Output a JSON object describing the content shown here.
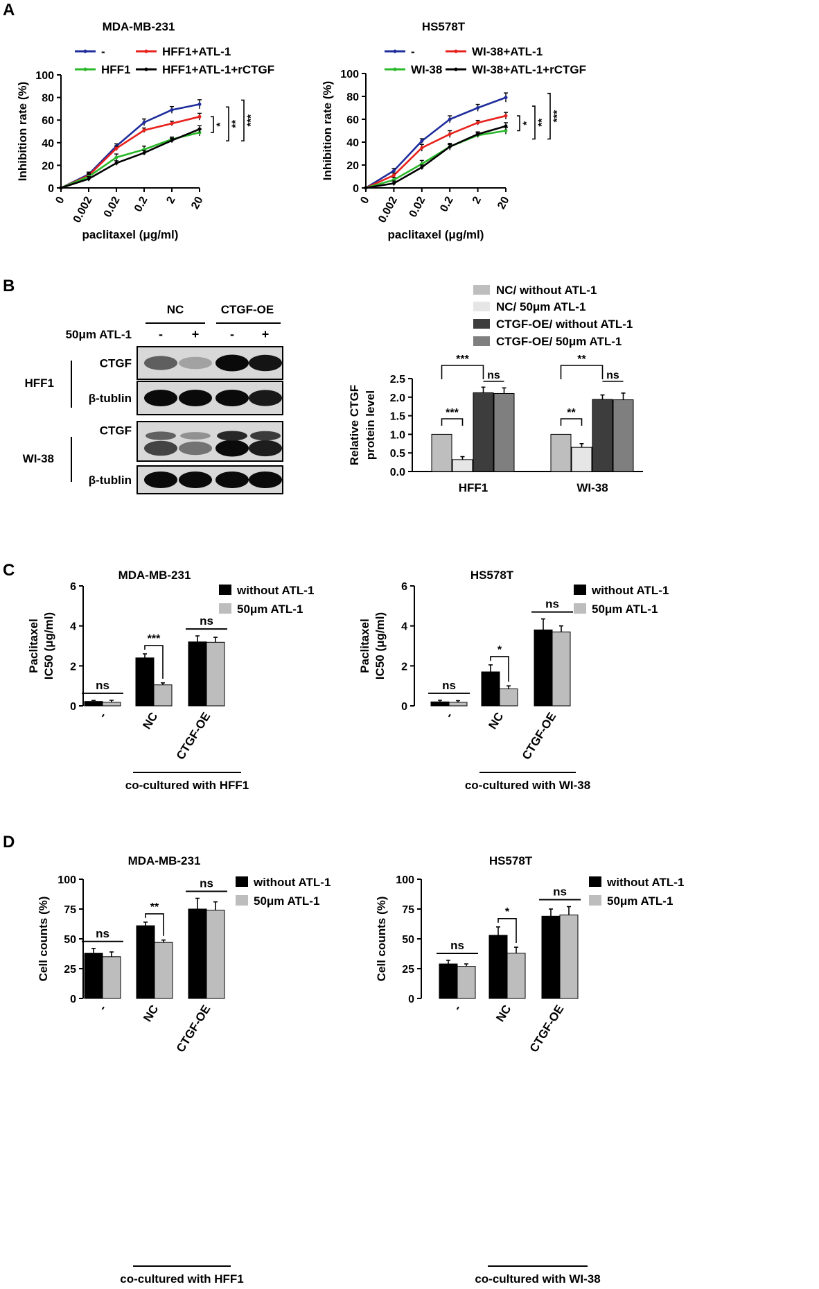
{
  "panel_labels": {
    "A": "A",
    "B": "B",
    "C": "C",
    "D": "D"
  },
  "blot": {
    "group_nc": "NC",
    "group_oe": "CTGF-OE",
    "treatment_label": "50μm ATL-1",
    "treatment_signs": [
      "-",
      "+",
      "-",
      "+"
    ],
    "rows": [
      {
        "cell": "HFF1",
        "protein": "CTGF",
        "intensities": [
          0.55,
          0.2,
          1.0,
          0.95
        ]
      },
      {
        "cell": "HFF1",
        "protein": "β-tublin",
        "intensities": [
          1.0,
          1.0,
          1.0,
          0.92
        ]
      },
      {
        "cell": "WI-38",
        "protein": "CTGF",
        "intensities": [
          0.7,
          0.45,
          1.0,
          0.9
        ]
      },
      {
        "cell": "WI-38",
        "protein": "β-tublin",
        "intensities": [
          1.0,
          1.0,
          1.0,
          1.0
        ]
      }
    ],
    "cell_labels": [
      "HFF1",
      "WI-38"
    ]
  },
  "colors": {
    "blue": "#1f2d9c",
    "red": "#e8211c",
    "green": "#2ab82a",
    "black": "#000000"
  },
  "chart_data": [
    {
      "type": "line",
      "panel": "A",
      "title": "MDA-MB-231",
      "xlabel": "paclitaxel (μg/ml)",
      "ylabel": "Inhibition rate (%)",
      "categories": [
        "0",
        "0.002",
        "0.02",
        "0.2",
        "2",
        "20"
      ],
      "ylim": [
        0,
        100
      ],
      "yticks": [
        "0",
        "20",
        "40",
        "60",
        "80",
        "100"
      ],
      "series": [
        {
          "name": "-",
          "color": "#1f2d9c",
          "values": [
            0,
            12,
            37,
            58,
            69,
            74
          ],
          "errors": [
            0,
            2,
            2,
            3,
            3,
            4
          ]
        },
        {
          "name": "HFF1+ATL-1",
          "color": "#e8211c",
          "values": [
            0,
            11,
            35,
            51,
            57,
            63
          ],
          "errors": [
            0,
            2,
            2,
            2,
            2,
            3
          ]
        },
        {
          "name": "HFF1",
          "color": "#2ab82a",
          "values": [
            0,
            10,
            27,
            34,
            43,
            49
          ],
          "errors": [
            0,
            2,
            3,
            3,
            2,
            3
          ]
        },
        {
          "name": "HFF1+ATL-1+rCTGF",
          "color": "#000000",
          "values": [
            0,
            8,
            22,
            31,
            42,
            52
          ],
          "errors": [
            0,
            2,
            2,
            2,
            2,
            3
          ]
        }
      ],
      "significance": [
        "*",
        "**",
        "***"
      ]
    },
    {
      "type": "line",
      "panel": "A",
      "title": "HS578T",
      "xlabel": "paclitaxel (μg/ml)",
      "ylabel": "Inhibition rate (%)",
      "categories": [
        "0",
        "0.002",
        "0.02",
        "0.2",
        "2",
        "20"
      ],
      "ylim": [
        0,
        100
      ],
      "yticks": [
        "0",
        "20",
        "40",
        "60",
        "80",
        "100"
      ],
      "series": [
        {
          "name": "-",
          "color": "#1f2d9c",
          "values": [
            0,
            15,
            41,
            60,
            70,
            79
          ],
          "errors": [
            0,
            2,
            2,
            3,
            3,
            4
          ]
        },
        {
          "name": "WI-38+ATL-1",
          "color": "#e8211c",
          "values": [
            0,
            11,
            35,
            47,
            57,
            63
          ],
          "errors": [
            0,
            2,
            3,
            3,
            2,
            3
          ]
        },
        {
          "name": "WI-38",
          "color": "#2ab82a",
          "values": [
            0,
            7,
            21,
            36,
            46,
            50
          ],
          "errors": [
            0,
            2,
            3,
            3,
            2,
            3
          ]
        },
        {
          "name": "WI-38+ATL-1+rCTGF",
          "color": "#000000",
          "values": [
            0,
            4,
            18,
            36,
            47,
            54
          ],
          "errors": [
            0,
            2,
            2,
            2,
            2,
            3
          ]
        }
      ],
      "significance": [
        "*",
        "**",
        "***"
      ]
    },
    {
      "type": "bar",
      "panel": "B",
      "ylabel": "Relative CTGF protein level",
      "categories": [
        "HFF1",
        "WI-38"
      ],
      "ylim": [
        0,
        2.5
      ],
      "yticks": [
        "0.0",
        "0.5",
        "1.0",
        "1.5",
        "2.0",
        "2.5"
      ],
      "series": [
        {
          "name": "NC/ without ATL-1",
          "color": "#bebebe",
          "values": [
            1.0,
            1.0
          ],
          "errors": [
            0,
            0
          ]
        },
        {
          "name": "NC/ 50μm ATL-1",
          "color": "#e6e6e6",
          "values": [
            0.32,
            0.65
          ],
          "errors": [
            0.08,
            0.1
          ]
        },
        {
          "name": "CTGF-OE/ without ATL-1",
          "color": "#3d3d3d",
          "values": [
            2.12,
            1.94
          ],
          "errors": [
            0.15,
            0.12
          ]
        },
        {
          "name": "CTGF-OE/ 50μm ATL-1",
          "color": "#7f7f7f",
          "values": [
            2.1,
            1.93
          ],
          "errors": [
            0.15,
            0.18
          ]
        }
      ],
      "annotations": {
        "HFF1": [
          "***",
          "***",
          "ns"
        ],
        "WI-38": [
          "**",
          "**",
          "ns"
        ]
      }
    },
    {
      "type": "bar",
      "panel": "C",
      "title": "MDA-MB-231",
      "ylabel": "Paclitaxel IC50 (μg/ml)",
      "categories": [
        "-",
        "NC",
        "CTGF-OE"
      ],
      "group_label": "co-cultured with HFF1",
      "ylim": [
        0,
        6
      ],
      "yticks": [
        "0",
        "2",
        "4",
        "6"
      ],
      "series": [
        {
          "name": "without ATL-1",
          "color": "#000000",
          "values": [
            0.22,
            2.4,
            3.2
          ],
          "errors": [
            0.05,
            0.2,
            0.3
          ]
        },
        {
          "name": "50μm ATL-1",
          "color": "#bdbdbd",
          "values": [
            0.18,
            1.05,
            3.18
          ],
          "errors": [
            0.1,
            0.1,
            0.25
          ]
        }
      ],
      "annotations": [
        "ns",
        "***",
        "ns"
      ]
    },
    {
      "type": "bar",
      "panel": "C",
      "title": "HS578T",
      "ylabel": "Paclitaxel IC50 (μg/ml)",
      "categories": [
        "-",
        "NC",
        "CTGF-OE"
      ],
      "group_label": "co-cultured with WI-38",
      "ylim": [
        0,
        6
      ],
      "yticks": [
        "0",
        "2",
        "4",
        "6"
      ],
      "series": [
        {
          "name": "without ATL-1",
          "color": "#000000",
          "values": [
            0.2,
            1.7,
            3.8
          ],
          "errors": [
            0.08,
            0.35,
            0.55
          ]
        },
        {
          "name": "50μm ATL-1",
          "color": "#bdbdbd",
          "values": [
            0.18,
            0.85,
            3.7
          ],
          "errors": [
            0.08,
            0.15,
            0.3
          ]
        }
      ],
      "annotations": [
        "ns",
        "*",
        "ns"
      ]
    },
    {
      "type": "bar",
      "panel": "D",
      "title": "MDA-MB-231",
      "ylabel": "Cell counts (%)",
      "categories": [
        "-",
        "NC",
        "CTGF-OE"
      ],
      "group_label": "co-cultured with HFF1",
      "ylim": [
        0,
        100
      ],
      "yticks": [
        "0",
        "25",
        "50",
        "75",
        "100"
      ],
      "series": [
        {
          "name": "without ATL-1",
          "color": "#000000",
          "values": [
            38,
            61,
            75
          ],
          "errors": [
            4,
            3,
            9
          ]
        },
        {
          "name": "50μm ATL-1",
          "color": "#bdbdbd",
          "values": [
            35,
            47,
            74
          ],
          "errors": [
            4,
            2,
            7
          ]
        }
      ],
      "annotations": [
        "ns",
        "**",
        "ns"
      ]
    },
    {
      "type": "bar",
      "panel": "D",
      "title": "HS578T",
      "ylabel": "Cell counts (%)",
      "categories": [
        "-",
        "NC",
        "CTGF-OE"
      ],
      "group_label": "co-cultured with WI-38",
      "ylim": [
        0,
        100
      ],
      "yticks": [
        "0",
        "25",
        "50",
        "75",
        "100"
      ],
      "series": [
        {
          "name": "without ATL-1",
          "color": "#000000",
          "values": [
            29,
            53,
            69
          ],
          "errors": [
            3,
            7,
            6
          ]
        },
        {
          "name": "50μm ATL-1",
          "color": "#bdbdbd",
          "values": [
            27,
            38,
            70
          ],
          "errors": [
            2,
            5,
            7
          ]
        }
      ],
      "annotations": [
        "ns",
        "*",
        "ns"
      ]
    }
  ]
}
